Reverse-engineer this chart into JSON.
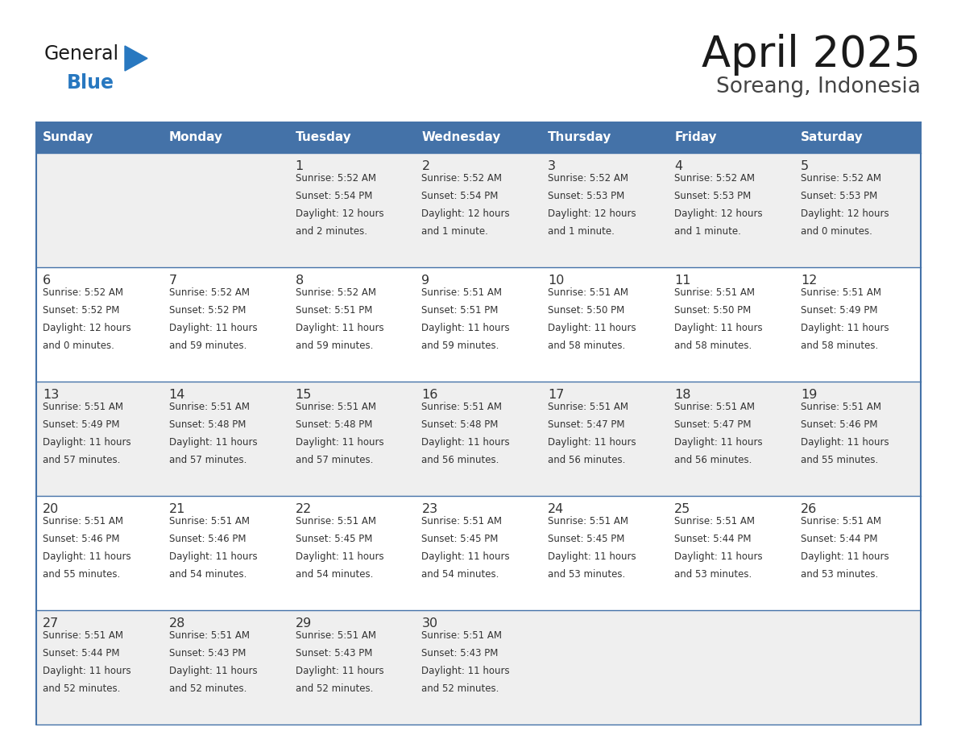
{
  "title": "April 2025",
  "subtitle": "Soreang, Indonesia",
  "header_bg": "#4472a8",
  "header_text_color": "#ffffff",
  "cell_bg_odd": "#efefef",
  "cell_bg_even": "#ffffff",
  "day_names": [
    "Sunday",
    "Monday",
    "Tuesday",
    "Wednesday",
    "Thursday",
    "Friday",
    "Saturday"
  ],
  "days": [
    {
      "day": 1,
      "col": 2,
      "row": 0,
      "sunrise": "5:52 AM",
      "sunset": "5:54 PM",
      "daylight_h": "12 hours",
      "daylight_m": "2 minutes."
    },
    {
      "day": 2,
      "col": 3,
      "row": 0,
      "sunrise": "5:52 AM",
      "sunset": "5:54 PM",
      "daylight_h": "12 hours",
      "daylight_m": "1 minute."
    },
    {
      "day": 3,
      "col": 4,
      "row": 0,
      "sunrise": "5:52 AM",
      "sunset": "5:53 PM",
      "daylight_h": "12 hours",
      "daylight_m": "1 minute."
    },
    {
      "day": 4,
      "col": 5,
      "row": 0,
      "sunrise": "5:52 AM",
      "sunset": "5:53 PM",
      "daylight_h": "12 hours",
      "daylight_m": "1 minute."
    },
    {
      "day": 5,
      "col": 6,
      "row": 0,
      "sunrise": "5:52 AM",
      "sunset": "5:53 PM",
      "daylight_h": "12 hours",
      "daylight_m": "0 minutes."
    },
    {
      "day": 6,
      "col": 0,
      "row": 1,
      "sunrise": "5:52 AM",
      "sunset": "5:52 PM",
      "daylight_h": "12 hours",
      "daylight_m": "0 minutes."
    },
    {
      "day": 7,
      "col": 1,
      "row": 1,
      "sunrise": "5:52 AM",
      "sunset": "5:52 PM",
      "daylight_h": "11 hours",
      "daylight_m": "59 minutes."
    },
    {
      "day": 8,
      "col": 2,
      "row": 1,
      "sunrise": "5:52 AM",
      "sunset": "5:51 PM",
      "daylight_h": "11 hours",
      "daylight_m": "59 minutes."
    },
    {
      "day": 9,
      "col": 3,
      "row": 1,
      "sunrise": "5:51 AM",
      "sunset": "5:51 PM",
      "daylight_h": "11 hours",
      "daylight_m": "59 minutes."
    },
    {
      "day": 10,
      "col": 4,
      "row": 1,
      "sunrise": "5:51 AM",
      "sunset": "5:50 PM",
      "daylight_h": "11 hours",
      "daylight_m": "58 minutes."
    },
    {
      "day": 11,
      "col": 5,
      "row": 1,
      "sunrise": "5:51 AM",
      "sunset": "5:50 PM",
      "daylight_h": "11 hours",
      "daylight_m": "58 minutes."
    },
    {
      "day": 12,
      "col": 6,
      "row": 1,
      "sunrise": "5:51 AM",
      "sunset": "5:49 PM",
      "daylight_h": "11 hours",
      "daylight_m": "58 minutes."
    },
    {
      "day": 13,
      "col": 0,
      "row": 2,
      "sunrise": "5:51 AM",
      "sunset": "5:49 PM",
      "daylight_h": "11 hours",
      "daylight_m": "57 minutes."
    },
    {
      "day": 14,
      "col": 1,
      "row": 2,
      "sunrise": "5:51 AM",
      "sunset": "5:48 PM",
      "daylight_h": "11 hours",
      "daylight_m": "57 minutes."
    },
    {
      "day": 15,
      "col": 2,
      "row": 2,
      "sunrise": "5:51 AM",
      "sunset": "5:48 PM",
      "daylight_h": "11 hours",
      "daylight_m": "57 minutes."
    },
    {
      "day": 16,
      "col": 3,
      "row": 2,
      "sunrise": "5:51 AM",
      "sunset": "5:48 PM",
      "daylight_h": "11 hours",
      "daylight_m": "56 minutes."
    },
    {
      "day": 17,
      "col": 4,
      "row": 2,
      "sunrise": "5:51 AM",
      "sunset": "5:47 PM",
      "daylight_h": "11 hours",
      "daylight_m": "56 minutes."
    },
    {
      "day": 18,
      "col": 5,
      "row": 2,
      "sunrise": "5:51 AM",
      "sunset": "5:47 PM",
      "daylight_h": "11 hours",
      "daylight_m": "56 minutes."
    },
    {
      "day": 19,
      "col": 6,
      "row": 2,
      "sunrise": "5:51 AM",
      "sunset": "5:46 PM",
      "daylight_h": "11 hours",
      "daylight_m": "55 minutes."
    },
    {
      "day": 20,
      "col": 0,
      "row": 3,
      "sunrise": "5:51 AM",
      "sunset": "5:46 PM",
      "daylight_h": "11 hours",
      "daylight_m": "55 minutes."
    },
    {
      "day": 21,
      "col": 1,
      "row": 3,
      "sunrise": "5:51 AM",
      "sunset": "5:46 PM",
      "daylight_h": "11 hours",
      "daylight_m": "54 minutes."
    },
    {
      "day": 22,
      "col": 2,
      "row": 3,
      "sunrise": "5:51 AM",
      "sunset": "5:45 PM",
      "daylight_h": "11 hours",
      "daylight_m": "54 minutes."
    },
    {
      "day": 23,
      "col": 3,
      "row": 3,
      "sunrise": "5:51 AM",
      "sunset": "5:45 PM",
      "daylight_h": "11 hours",
      "daylight_m": "54 minutes."
    },
    {
      "day": 24,
      "col": 4,
      "row": 3,
      "sunrise": "5:51 AM",
      "sunset": "5:45 PM",
      "daylight_h": "11 hours",
      "daylight_m": "53 minutes."
    },
    {
      "day": 25,
      "col": 5,
      "row": 3,
      "sunrise": "5:51 AM",
      "sunset": "5:44 PM",
      "daylight_h": "11 hours",
      "daylight_m": "53 minutes."
    },
    {
      "day": 26,
      "col": 6,
      "row": 3,
      "sunrise": "5:51 AM",
      "sunset": "5:44 PM",
      "daylight_h": "11 hours",
      "daylight_m": "53 minutes."
    },
    {
      "day": 27,
      "col": 0,
      "row": 4,
      "sunrise": "5:51 AM",
      "sunset": "5:44 PM",
      "daylight_h": "11 hours",
      "daylight_m": "52 minutes."
    },
    {
      "day": 28,
      "col": 1,
      "row": 4,
      "sunrise": "5:51 AM",
      "sunset": "5:43 PM",
      "daylight_h": "11 hours",
      "daylight_m": "52 minutes."
    },
    {
      "day": 29,
      "col": 2,
      "row": 4,
      "sunrise": "5:51 AM",
      "sunset": "5:43 PM",
      "daylight_h": "11 hours",
      "daylight_m": "52 minutes."
    },
    {
      "day": 30,
      "col": 3,
      "row": 4,
      "sunrise": "5:51 AM",
      "sunset": "5:43 PM",
      "daylight_h": "11 hours",
      "daylight_m": "52 minutes."
    }
  ],
  "num_rows": 5,
  "num_cols": 7,
  "border_color": "#4472a8",
  "text_color": "#333333",
  "logo_general_color": "#1a1a1a",
  "logo_blue_color": "#2878c0",
  "logo_triangle_color": "#2878c0"
}
